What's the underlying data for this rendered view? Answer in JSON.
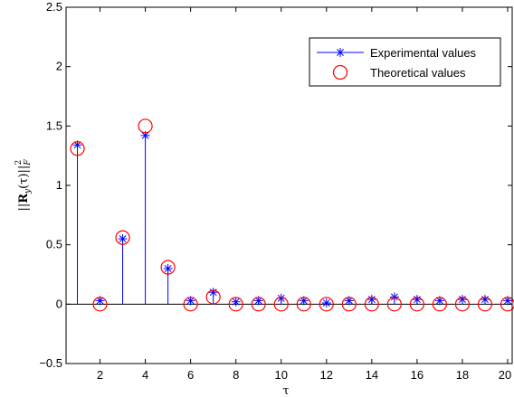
{
  "chart_data": {
    "type": "scatter",
    "xlabel": "τ",
    "ylabel": "||Ry(τ)||F²",
    "ylabel_parts": {
      "open": "||",
      "base": "R",
      "sub": "y",
      "arg": "(τ)||",
      "sub2": "F",
      "sup2": "2"
    },
    "xlim": [
      0.5,
      20.2
    ],
    "ylim": [
      -0.5,
      2.5
    ],
    "xticks": [
      2,
      4,
      6,
      8,
      10,
      12,
      14,
      16,
      18,
      20
    ],
    "yticks": [
      -0.5,
      0,
      0.5,
      1,
      1.5,
      2,
      2.5
    ],
    "ytick_labels": [
      "−0.5",
      "0",
      "0.5",
      "1",
      "1.5",
      "2",
      "2.5"
    ],
    "grid": false,
    "legend_position": "top-right",
    "series": [
      {
        "name": "Experimental values",
        "style": "stem",
        "marker": "asterisk",
        "color": "#0000ff",
        "x": [
          1,
          2,
          3,
          4,
          5,
          6,
          7,
          8,
          9,
          10,
          11,
          12,
          13,
          14,
          15,
          16,
          17,
          18,
          19,
          20
        ],
        "y": [
          1.34,
          0.03,
          0.55,
          1.42,
          0.3,
          0.03,
          0.1,
          0.02,
          0.03,
          0.05,
          0.03,
          0.01,
          0.03,
          0.04,
          0.06,
          0.04,
          0.03,
          0.04,
          0.04,
          0.03
        ]
      },
      {
        "name": "Theoretical values",
        "style": "marker",
        "marker": "circle",
        "color": "#ff0000",
        "x": [
          1,
          2,
          3,
          4,
          5,
          6,
          7,
          8,
          9,
          10,
          11,
          12,
          13,
          14,
          15,
          16,
          17,
          18,
          19,
          20
        ],
        "y": [
          1.31,
          0.0,
          0.56,
          1.5,
          0.31,
          0.0,
          0.06,
          0.0,
          0.0,
          0.0,
          0.0,
          0.0,
          0.0,
          0.0,
          0.0,
          0.0,
          0.0,
          0.0,
          0.0,
          0.0
        ]
      }
    ]
  }
}
